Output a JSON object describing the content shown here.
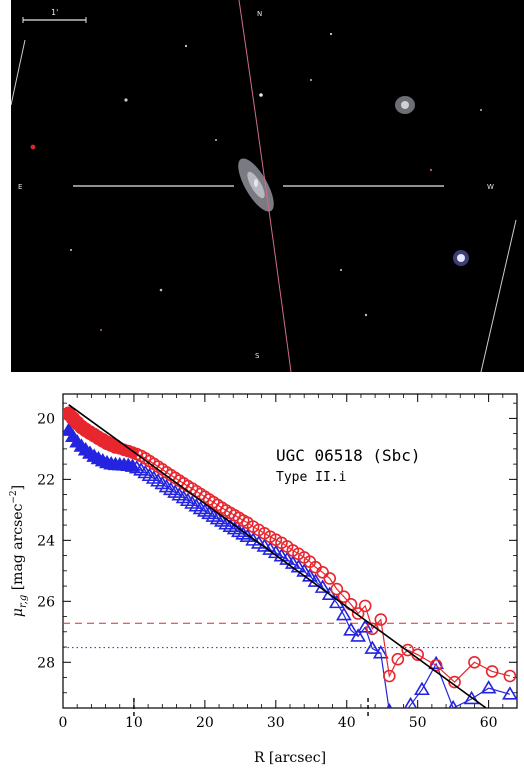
{
  "image": {
    "scale_bar_label": "1'",
    "compass_n": "N",
    "compass_s": "S",
    "compass_e": "E",
    "compass_w": "W"
  },
  "chart_data": {
    "type": "scatter",
    "xlabel": "R [arcsec]",
    "ylabel": "μ",
    "ylabel_sub": "r,g",
    "ylabel_unit": "[mag arcsec",
    "ylabel_exp": "−2",
    "ylabel_close": "]",
    "xlim": [
      0,
      64
    ],
    "ylim": [
      29.5,
      19.2
    ],
    "y_inverted": true,
    "xticks": [
      0,
      10,
      20,
      30,
      40,
      50,
      60
    ],
    "yticks": [
      20,
      22,
      24,
      26,
      28
    ],
    "annotation_title": "UGC 06518 (Sbc)",
    "annotation_sub": "Type II.i",
    "colors": {
      "r_band": "#e8262e",
      "g_band": "#2424e0",
      "fit": "#000000"
    },
    "series": [
      {
        "band": "r",
        "marker": "circle",
        "x": [
          0.8,
          1.4,
          2.0,
          2.6,
          3.2,
          3.8,
          4.4,
          5.0,
          5.6,
          6.2,
          6.8,
          7.4,
          8.0,
          8.6,
          9.2,
          9.8,
          10.4,
          11.0,
          11.6,
          12.2,
          12.8,
          13.4,
          14.0,
          14.6,
          15.2,
          15.8,
          16.4,
          17.0,
          17.6,
          18.2,
          18.8,
          19.4,
          20.0,
          20.6,
          21.2,
          21.8,
          22.4,
          23.0,
          23.6,
          24.2,
          24.8,
          25.4,
          26.0,
          26.8,
          27.6,
          28.4,
          29.2,
          30.0,
          30.8,
          31.6,
          32.4,
          33.2,
          34.0,
          34.8,
          35.6,
          36.6,
          37.6,
          38.6,
          39.6,
          40.6,
          41.6,
          42.6,
          43.6,
          44.8,
          46.0,
          47.2,
          48.6,
          50.0,
          52.6,
          55.2,
          58.0,
          60.5,
          63.0
        ],
        "y": [
          19.85,
          20.0,
          20.15,
          20.28,
          20.38,
          20.47,
          20.55,
          20.64,
          20.72,
          20.8,
          20.86,
          20.92,
          20.98,
          21.03,
          21.07,
          21.12,
          21.17,
          21.23,
          21.31,
          21.4,
          21.49,
          21.58,
          21.67,
          21.77,
          21.86,
          21.95,
          22.04,
          22.13,
          22.22,
          22.3,
          22.39,
          22.48,
          22.57,
          22.66,
          22.75,
          22.84,
          22.93,
          23.02,
          23.1,
          23.18,
          23.26,
          23.35,
          23.42,
          23.55,
          23.66,
          23.77,
          23.88,
          23.98,
          24.08,
          24.2,
          24.33,
          24.44,
          24.56,
          24.7,
          24.88,
          25.05,
          25.25,
          25.6,
          25.85,
          26.1,
          26.4,
          26.15,
          26.9,
          26.6,
          28.45,
          27.9,
          27.6,
          27.75,
          28.1,
          28.65,
          28.0,
          28.3,
          28.45
        ]
      },
      {
        "band": "g",
        "marker": "triangle",
        "x": [
          0.8,
          1.4,
          2.0,
          2.6,
          3.2,
          3.8,
          4.4,
          5.0,
          5.6,
          6.2,
          6.8,
          7.4,
          8.0,
          8.6,
          9.2,
          9.8,
          10.4,
          11.0,
          11.6,
          12.2,
          12.8,
          13.4,
          14.0,
          14.6,
          15.2,
          15.8,
          16.4,
          17.0,
          17.6,
          18.2,
          18.8,
          19.4,
          20.0,
          20.6,
          21.2,
          21.8,
          22.4,
          23.0,
          23.6,
          24.2,
          24.8,
          25.4,
          26.0,
          26.8,
          27.6,
          28.4,
          29.2,
          30.0,
          30.8,
          31.6,
          32.4,
          33.2,
          34.0,
          34.8,
          35.6,
          36.6,
          37.6,
          38.6,
          39.6,
          40.6,
          41.6,
          42.6,
          43.6,
          44.8,
          46.0,
          47.4,
          49.0,
          50.6,
          52.6,
          55.0,
          57.6,
          60.0,
          63.0
        ],
        "y": [
          20.4,
          20.6,
          20.78,
          20.92,
          21.04,
          21.15,
          21.25,
          21.33,
          21.4,
          21.46,
          21.5,
          21.52,
          21.53,
          21.54,
          21.55,
          21.58,
          21.63,
          21.7,
          21.79,
          21.88,
          21.97,
          22.06,
          22.15,
          22.25,
          22.34,
          22.43,
          22.52,
          22.61,
          22.7,
          22.79,
          22.88,
          22.97,
          23.05,
          23.13,
          23.22,
          23.3,
          23.38,
          23.47,
          23.55,
          23.63,
          23.72,
          23.8,
          23.88,
          24.0,
          24.1,
          24.2,
          24.3,
          24.41,
          24.52,
          24.63,
          24.76,
          24.88,
          25.02,
          25.18,
          25.35,
          25.55,
          25.78,
          26.05,
          26.45,
          26.95,
          27.15,
          26.85,
          27.55,
          27.7,
          29.6,
          29.9,
          29.4,
          28.9,
          28.05,
          29.5,
          29.2,
          28.85,
          29.05
        ]
      }
    ],
    "fit_line": {
      "x": [
        0.8,
        62
      ],
      "y": [
        19.55,
        29.9
      ]
    },
    "sky_r_level": 26.72,
    "sky_g_level": 27.52,
    "break_markers": [
      10,
      43
    ]
  }
}
